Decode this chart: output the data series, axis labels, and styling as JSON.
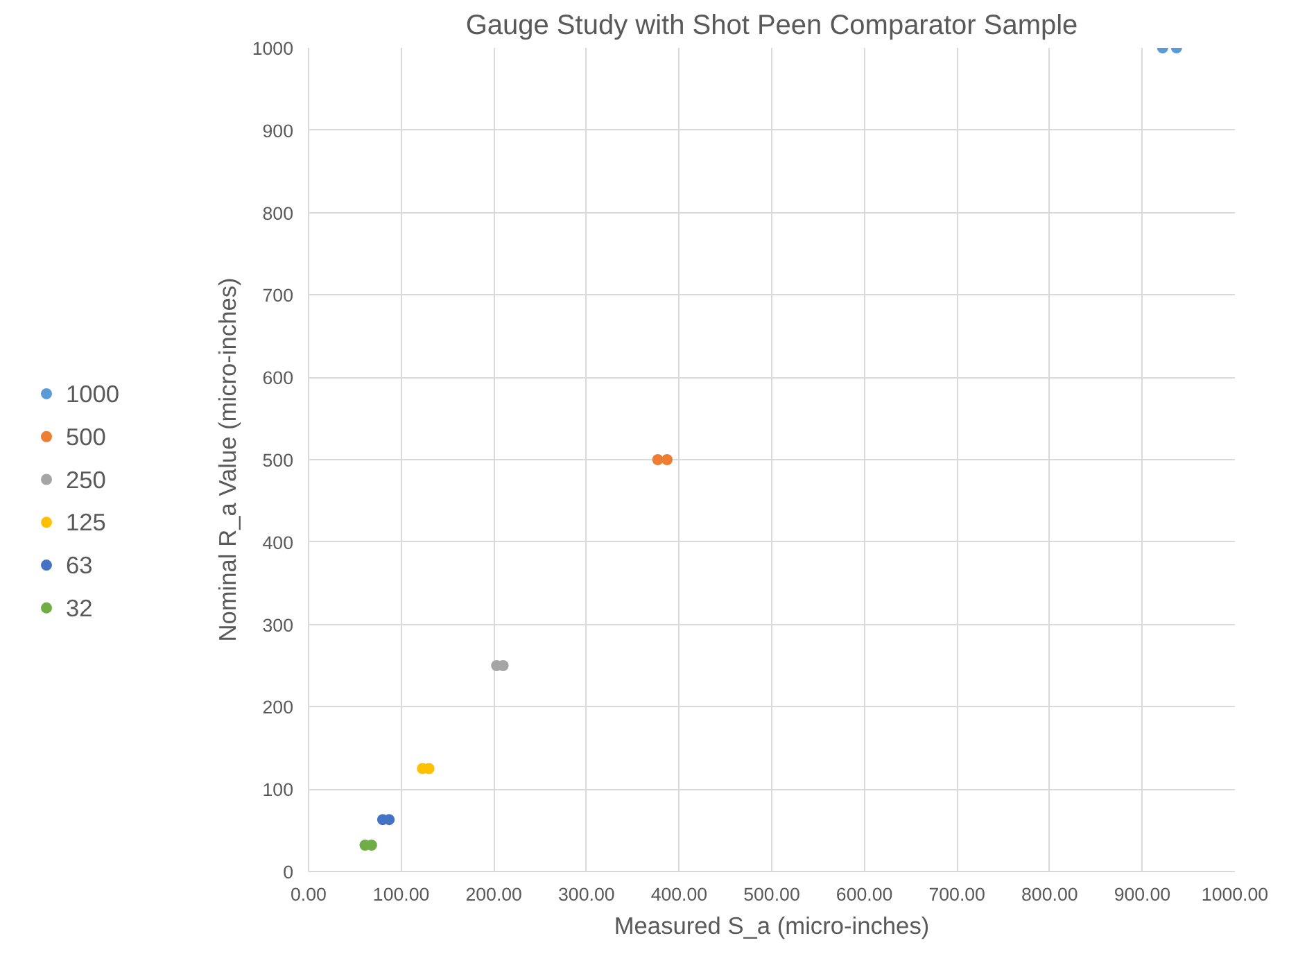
{
  "chart_data": {
    "type": "scatter",
    "title": "Gauge Study with Shot Peen Comparator Sample",
    "xlabel": "Measured S_a (micro-inches)",
    "ylabel": "Nominal R_a Value (micro-inches)",
    "series": [
      {
        "name": "1000",
        "color": "#5b9bd5",
        "x": [
          922,
          937
        ],
        "values": [
          1000,
          1000
        ]
      },
      {
        "name": "500",
        "color": "#ed7d31",
        "x": [
          377,
          387
        ],
        "values": [
          500,
          500
        ]
      },
      {
        "name": "250",
        "color": "#a5a5a5",
        "x": [
          203,
          210
        ],
        "values": [
          250,
          250
        ]
      },
      {
        "name": "125",
        "color": "#ffc000",
        "x": [
          123,
          130
        ],
        "values": [
          125,
          125
        ]
      },
      {
        "name": "63",
        "color": "#4472c4",
        "x": [
          80,
          87
        ],
        "values": [
          63,
          63
        ]
      },
      {
        "name": "32",
        "color": "#70ad47",
        "x": [
          61,
          68
        ],
        "values": [
          32,
          32
        ]
      }
    ],
    "xlim": [
      0,
      1000
    ],
    "ylim": [
      0,
      1000
    ],
    "xticks": [
      {
        "value": 0,
        "label": "0.00"
      },
      {
        "value": 100,
        "label": "100.00"
      },
      {
        "value": 200,
        "label": "200.00"
      },
      {
        "value": 300,
        "label": "300.00"
      },
      {
        "value": 400,
        "label": "400.00"
      },
      {
        "value": 500,
        "label": "500.00"
      },
      {
        "value": 600,
        "label": "600.00"
      },
      {
        "value": 700,
        "label": "700.00"
      },
      {
        "value": 800,
        "label": "800.00"
      },
      {
        "value": 900,
        "label": "900.00"
      },
      {
        "value": 1000,
        "label": "1000.00"
      }
    ],
    "yticks": [
      0,
      100,
      200,
      300,
      400,
      500,
      600,
      700,
      800,
      900,
      1000
    ],
    "grid": true,
    "legend": "left",
    "marker": "circle"
  }
}
